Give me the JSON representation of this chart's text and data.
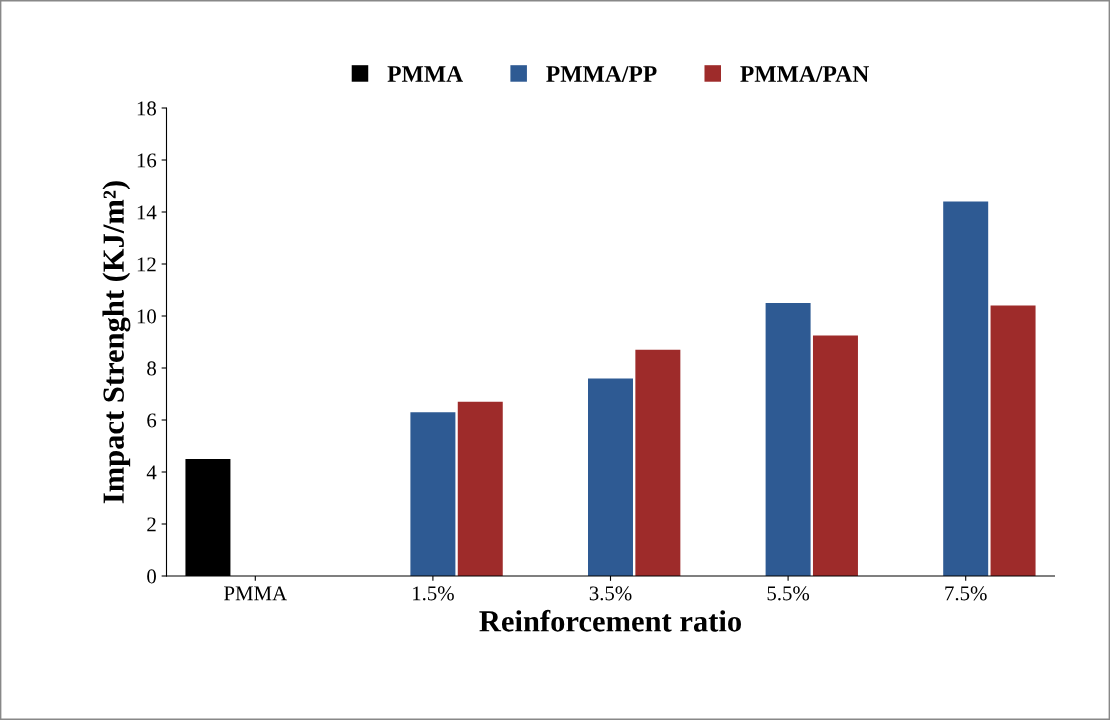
{
  "chart_data": {
    "type": "bar",
    "xlabel": "Reinforcement ratio",
    "ylabel": "Impact Strenght (KJ/m²)",
    "categories": [
      "PMMA",
      "1.5%",
      "3.5%",
      "5.5%",
      "7.5%"
    ],
    "series": [
      {
        "name": "PMMA",
        "color": "#000000",
        "values": [
          4.5,
          null,
          null,
          null,
          null
        ]
      },
      {
        "name": "PMMA/PP",
        "color": "#2e5a93",
        "values": [
          null,
          6.3,
          7.6,
          10.5,
          14.4
        ]
      },
      {
        "name": "PMMA/PAN",
        "color": "#9e2b2a",
        "values": [
          null,
          6.7,
          8.7,
          9.25,
          10.4
        ]
      }
    ],
    "ylim": [
      0,
      18
    ],
    "yticks": [
      0,
      2,
      4,
      6,
      8,
      10,
      12,
      14,
      16,
      18
    ],
    "grid": false,
    "legend": "top"
  }
}
